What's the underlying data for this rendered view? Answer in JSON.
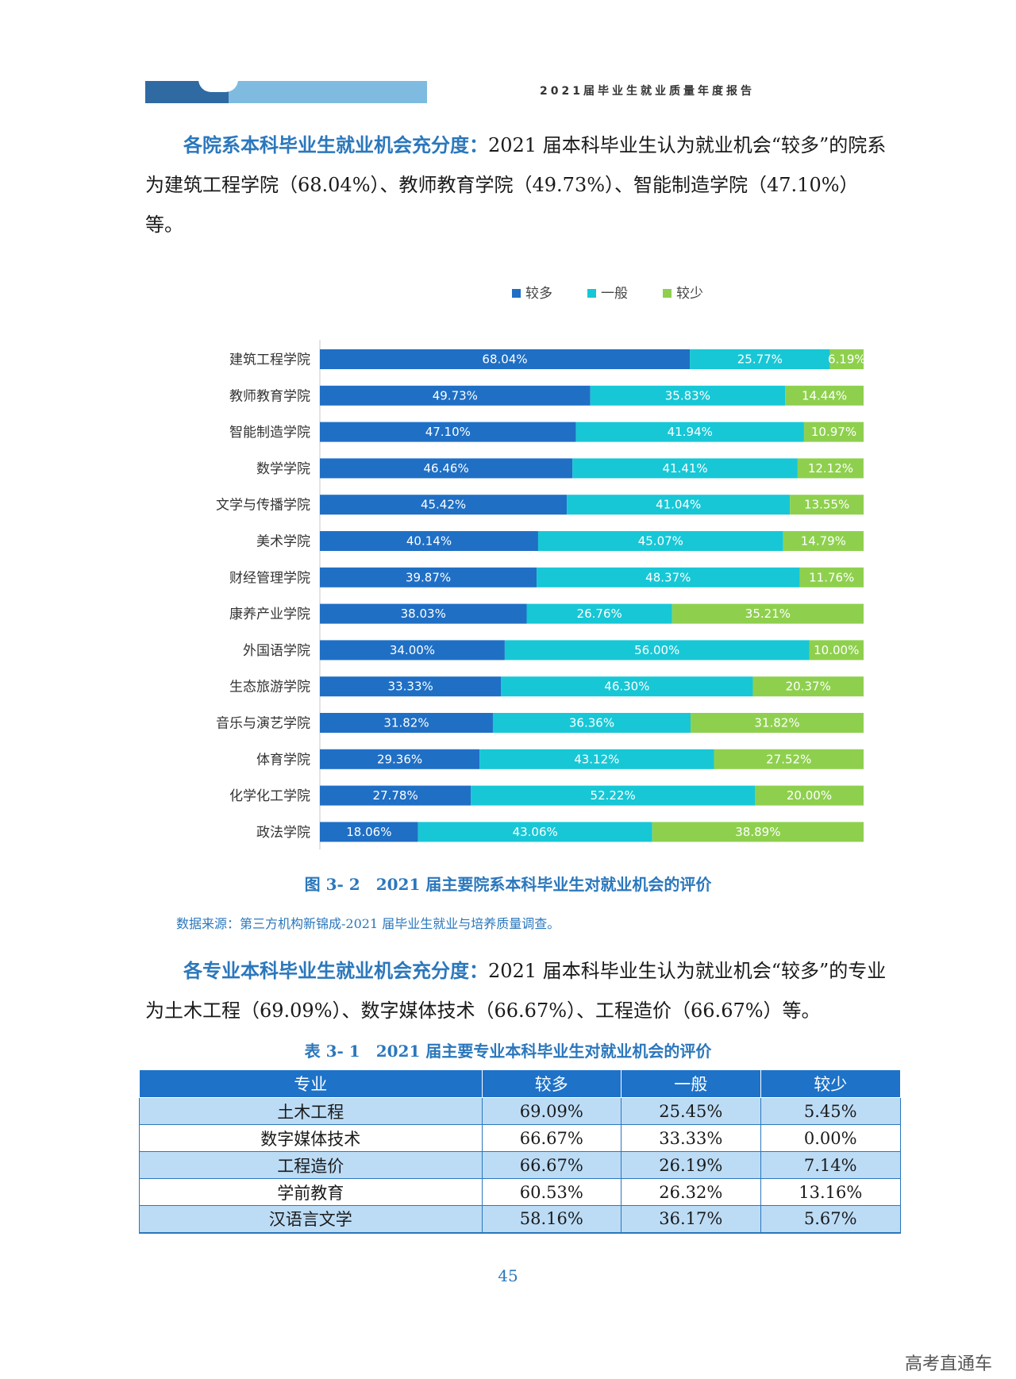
{
  "header": {
    "title": "2021届毕业生就业质量年度报告",
    "colors": {
      "dark": "#2f6aa3",
      "light": "#7fbbe0"
    }
  },
  "para1": {
    "lead": "各院系本科毕业生就业机会充分度：",
    "text": "2021 届本科毕业生认为就业机会“较多”的院系为建筑工程学院（68.04%）、教师教育学院（49.73%）、智能制造学院（47.10%）等。"
  },
  "chart_data": {
    "type": "bar",
    "orientation": "horizontal",
    "stacked": true,
    "legend_position": "top",
    "categories": [
      "建筑工程学院",
      "教师教育学院",
      "智能制造学院",
      "数学学院",
      "文学与传播学院",
      "美术学院",
      "财经管理学院",
      "康养产业学院",
      "外国语学院",
      "生态旅游学院",
      "音乐与演艺学院",
      "体育学院",
      "化学化工学院",
      "政法学院"
    ],
    "series": [
      {
        "name": "较多",
        "color": "#1f6fc5",
        "values": [
          68.04,
          49.73,
          47.1,
          46.46,
          45.42,
          40.14,
          39.87,
          38.03,
          34.0,
          33.33,
          31.82,
          29.36,
          27.78,
          18.06
        ]
      },
      {
        "name": "一般",
        "color": "#17c7d6",
        "values": [
          25.77,
          35.83,
          41.94,
          41.41,
          41.04,
          45.07,
          48.37,
          26.76,
          56.0,
          46.3,
          36.36,
          43.12,
          52.22,
          43.06
        ]
      },
      {
        "name": "较少",
        "color": "#8ed04e",
        "values": [
          6.19,
          14.44,
          10.97,
          12.12,
          13.55,
          14.79,
          11.76,
          35.21,
          10.0,
          20.37,
          31.82,
          27.52,
          20.0,
          38.89
        ]
      }
    ],
    "xlim": [
      0,
      100
    ],
    "unit": "%"
  },
  "caption1": "图 3- 2　2021 届主要院系本科毕业生对就业机会的评价",
  "source": "数据来源：第三方机构新锦成-2021 届毕业生就业与培养质量调查。",
  "para2": {
    "lead": "各专业本科毕业生就业机会充分度：",
    "text": "2021 届本科毕业生认为就业机会“较多”的专业为土木工程（69.09%）、数字媒体技术（66.67%）、工程造价（66.67%）等。"
  },
  "caption2": "表 3- 1　2021 届主要专业本科毕业生对就业机会的评价",
  "table": {
    "headers": [
      "专业",
      "较多",
      "一般",
      "较少"
    ],
    "rows": [
      [
        "土木工程",
        "69.09%",
        "25.45%",
        "5.45%"
      ],
      [
        "数字媒体技术",
        "66.67%",
        "33.33%",
        "0.00%"
      ],
      [
        "工程造价",
        "66.67%",
        "26.19%",
        "7.14%"
      ],
      [
        "学前教育",
        "60.53%",
        "26.32%",
        "13.16%"
      ],
      [
        "汉语言文学",
        "58.16%",
        "36.17%",
        "5.67%"
      ]
    ]
  },
  "page_number": "45",
  "watermark": "高考直通车"
}
